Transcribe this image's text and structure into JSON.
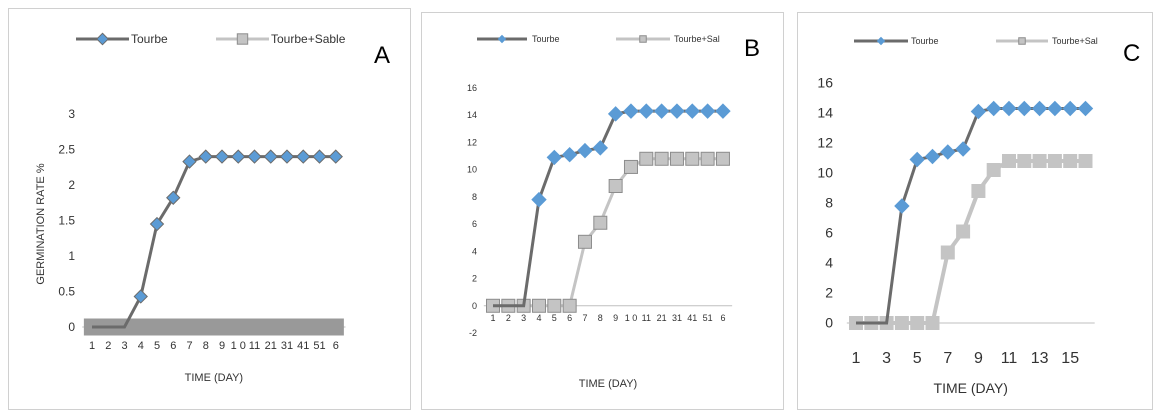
{
  "chart_data": [
    {
      "panel_letter": "A",
      "type": "line",
      "title": "",
      "xlabel": "TIME (DAY)",
      "ylabel": "GERMINATION RATE %",
      "x": [
        1,
        2,
        3,
        4,
        5,
        6,
        7,
        8,
        9,
        10,
        11,
        12,
        13,
        14,
        15,
        16
      ],
      "tick_labels": [
        "1",
        "2",
        "3",
        "4",
        "5",
        "6",
        "7",
        "8",
        "9",
        "1 0",
        "11",
        "21",
        "31",
        "41",
        "51",
        "6"
      ],
      "ylim": [
        0,
        3
      ],
      "yticks": [
        "0",
        "0.5",
        "1",
        "1.5",
        "2",
        "2.5",
        "3"
      ],
      "grid": false,
      "legend": "top",
      "series": [
        {
          "name": "Tourbe",
          "values": [
            0,
            0,
            0,
            0.43,
            1.45,
            1.82,
            2.33,
            2.4,
            2.4,
            2.4,
            2.4,
            2.4,
            2.4,
            2.4,
            2.4,
            2.4
          ]
        },
        {
          "name": "Tourbe+Sable",
          "values": [
            0,
            0,
            0,
            0,
            0,
            0,
            0,
            0,
            0,
            0,
            0,
            0,
            0,
            0,
            0,
            0
          ]
        }
      ]
    },
    {
      "panel_letter": "B",
      "type": "line",
      "title": "",
      "xlabel": "TIME (DAY)",
      "ylabel": "",
      "x": [
        1,
        2,
        3,
        4,
        5,
        6,
        7,
        8,
        9,
        10,
        11,
        12,
        13,
        14,
        15,
        16
      ],
      "tick_labels": [
        "1",
        "2",
        "3",
        "4",
        "5",
        "6",
        "7",
        "8",
        "9",
        "1 0",
        "11",
        "21",
        "31",
        "41",
        "51",
        "6"
      ],
      "ylim": [
        -2,
        16
      ],
      "yticks": [
        "-2",
        "0",
        "2",
        "4",
        "6",
        "8",
        "10",
        "12",
        "14",
        "16"
      ],
      "grid": false,
      "legend": "top",
      "series": [
        {
          "name": "Tourbe",
          "values": [
            0,
            0,
            0,
            7.8,
            10.9,
            11.1,
            11.4,
            11.6,
            14.1,
            14.3,
            14.3,
            14.3,
            14.3,
            14.3,
            14.3,
            14.3
          ]
        },
        {
          "name": "Tourbe+Sal",
          "values": [
            0,
            0,
            0,
            0,
            0,
            0,
            4.7,
            6.1,
            8.8,
            10.2,
            10.8,
            10.8,
            10.8,
            10.8,
            10.8,
            10.8
          ]
        }
      ]
    },
    {
      "panel_letter": "C",
      "type": "line",
      "title": "",
      "xlabel": "TIME (DAY)",
      "ylabel": "",
      "x": [
        1,
        2,
        3,
        4,
        5,
        6,
        7,
        8,
        9,
        10,
        11,
        12,
        13,
        14,
        15,
        16
      ],
      "tick_labels": [
        "1",
        "",
        "3",
        "",
        "5",
        "",
        "7",
        "",
        "9",
        "",
        "11",
        "",
        "13",
        "",
        "15",
        ""
      ],
      "ylim": [
        0,
        16
      ],
      "yticks": [
        "0",
        "2",
        "4",
        "6",
        "8",
        "10",
        "12",
        "14",
        "16"
      ],
      "grid": false,
      "legend": "top",
      "series": [
        {
          "name": "Tourbe",
          "values": [
            0,
            0,
            0,
            7.8,
            10.9,
            11.1,
            11.4,
            11.6,
            14.1,
            14.3,
            14.3,
            14.3,
            14.3,
            14.3,
            14.3,
            14.3
          ]
        },
        {
          "name": "Tourbe+Sal",
          "values": [
            0,
            0,
            0,
            0,
            0,
            0,
            4.7,
            6.1,
            8.8,
            10.2,
            10.8,
            10.8,
            10.8,
            10.8,
            10.8,
            10.8
          ]
        }
      ]
    }
  ],
  "colors": {
    "series1_line": "#6b6b6b",
    "series2_line": "#c4c4c4",
    "marker_diamond": "#5b9bd5",
    "marker_diamond_a_stroke": "#6b6b6b",
    "marker_square": "#c4c4c4",
    "marker_square_stroke": "#8c8c8c",
    "axis": "#bfbfbf",
    "text": "#333333"
  }
}
